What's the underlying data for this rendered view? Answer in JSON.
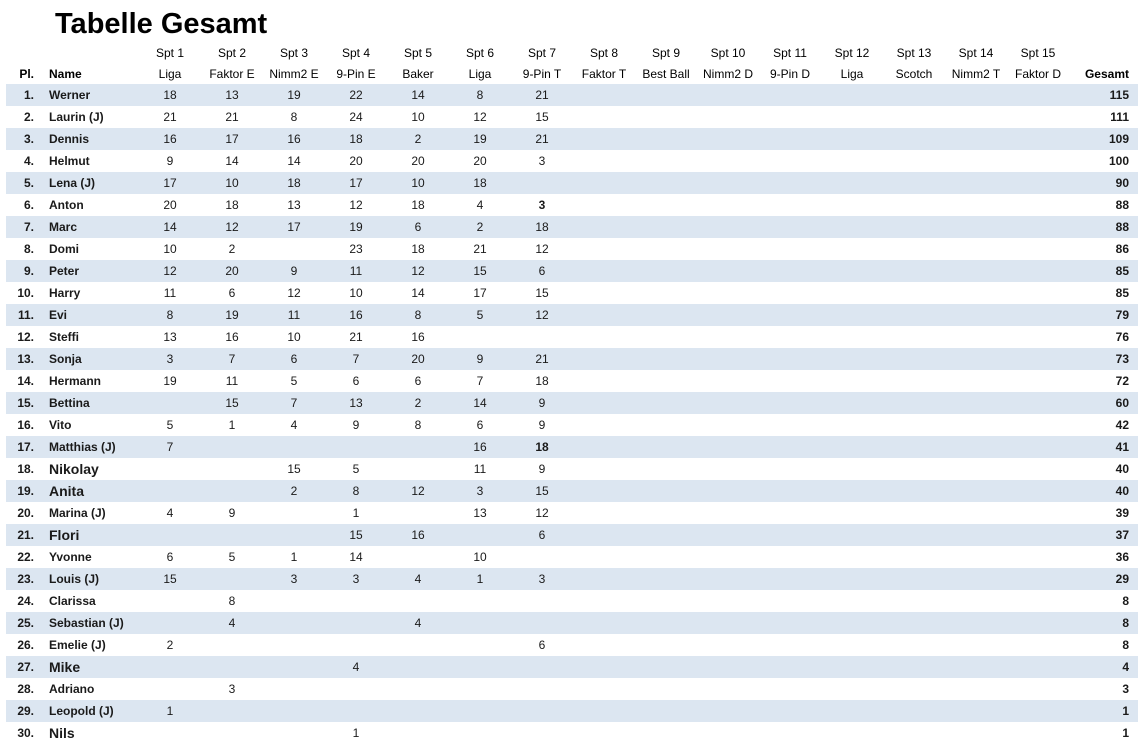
{
  "title": "Tabelle Gesamt",
  "colors": {
    "stripe": "#dce6f1",
    "text": "#1a1a1a"
  },
  "table": {
    "pl_header": "Pl.",
    "name_header": "Name",
    "gesamt_header": "Gesamt",
    "spt_columns": [
      {
        "label": "Spt 1",
        "mode": "Liga"
      },
      {
        "label": "Spt 2",
        "mode": "Faktor E"
      },
      {
        "label": "Spt 3",
        "mode": "Nimm2 E"
      },
      {
        "label": "Spt 4",
        "mode": "9-Pin E"
      },
      {
        "label": "Spt 5",
        "mode": "Baker"
      },
      {
        "label": "Spt 6",
        "mode": "Liga"
      },
      {
        "label": "Spt 7",
        "mode": "9-Pin T"
      },
      {
        "label": "Spt 8",
        "mode": "Faktor T"
      },
      {
        "label": "Spt 9",
        "mode": "Best Ball"
      },
      {
        "label": "Spt 10",
        "mode": "Nimm2 D"
      },
      {
        "label": "Spt 11",
        "mode": "9-Pin D"
      },
      {
        "label": "Spt 12",
        "mode": "Liga"
      },
      {
        "label": "Spt 13",
        "mode": "Scotch"
      },
      {
        "label": "Spt 14",
        "mode": "Nimm2 T"
      },
      {
        "label": "Spt 15",
        "mode": "Faktor D"
      }
    ],
    "rows": [
      {
        "pl": "1.",
        "name": "Werner",
        "large_name": false,
        "values": [
          "18",
          "13",
          "19",
          "22",
          "14",
          "8",
          "21",
          "",
          "",
          "",
          "",
          "",
          "",
          "",
          ""
        ],
        "bold_values": [],
        "gesamt": "115"
      },
      {
        "pl": "2.",
        "name": "Laurin (J)",
        "large_name": false,
        "values": [
          "21",
          "21",
          "8",
          "24",
          "10",
          "12",
          "15",
          "",
          "",
          "",
          "",
          "",
          "",
          "",
          ""
        ],
        "bold_values": [],
        "gesamt": "111"
      },
      {
        "pl": "3.",
        "name": "Dennis",
        "large_name": false,
        "values": [
          "16",
          "17",
          "16",
          "18",
          "2",
          "19",
          "21",
          "",
          "",
          "",
          "",
          "",
          "",
          "",
          ""
        ],
        "bold_values": [],
        "gesamt": "109"
      },
      {
        "pl": "4.",
        "name": "Helmut",
        "large_name": false,
        "values": [
          "9",
          "14",
          "14",
          "20",
          "20",
          "20",
          "3",
          "",
          "",
          "",
          "",
          "",
          "",
          "",
          ""
        ],
        "bold_values": [],
        "gesamt": "100"
      },
      {
        "pl": "5.",
        "name": "Lena (J)",
        "large_name": false,
        "values": [
          "17",
          "10",
          "18",
          "17",
          "10",
          "18",
          "",
          "",
          "",
          "",
          "",
          "",
          "",
          "",
          ""
        ],
        "bold_values": [],
        "gesamt": "90"
      },
      {
        "pl": "6.",
        "name": "Anton",
        "large_name": false,
        "values": [
          "20",
          "18",
          "13",
          "12",
          "18",
          "4",
          "3",
          "",
          "",
          "",
          "",
          "",
          "",
          "",
          ""
        ],
        "bold_values": [
          6
        ],
        "gesamt": "88"
      },
      {
        "pl": "7.",
        "name": "Marc",
        "large_name": false,
        "values": [
          "14",
          "12",
          "17",
          "19",
          "6",
          "2",
          "18",
          "",
          "",
          "",
          "",
          "",
          "",
          "",
          ""
        ],
        "bold_values": [],
        "gesamt": "88"
      },
      {
        "pl": "8.",
        "name": "Domi",
        "large_name": false,
        "values": [
          "10",
          "2",
          "",
          "23",
          "18",
          "21",
          "12",
          "",
          "",
          "",
          "",
          "",
          "",
          "",
          ""
        ],
        "bold_values": [],
        "gesamt": "86"
      },
      {
        "pl": "9.",
        "name": "Peter",
        "large_name": false,
        "values": [
          "12",
          "20",
          "9",
          "11",
          "12",
          "15",
          "6",
          "",
          "",
          "",
          "",
          "",
          "",
          "",
          ""
        ],
        "bold_values": [],
        "gesamt": "85"
      },
      {
        "pl": "10.",
        "name": "Harry",
        "large_name": false,
        "values": [
          "11",
          "6",
          "12",
          "10",
          "14",
          "17",
          "15",
          "",
          "",
          "",
          "",
          "",
          "",
          "",
          ""
        ],
        "bold_values": [],
        "gesamt": "85"
      },
      {
        "pl": "11.",
        "name": "Evi",
        "large_name": false,
        "values": [
          "8",
          "19",
          "11",
          "16",
          "8",
          "5",
          "12",
          "",
          "",
          "",
          "",
          "",
          "",
          "",
          ""
        ],
        "bold_values": [],
        "gesamt": "79"
      },
      {
        "pl": "12.",
        "name": "Steffi",
        "large_name": false,
        "values": [
          "13",
          "16",
          "10",
          "21",
          "16",
          "",
          "",
          "",
          "",
          "",
          "",
          "",
          "",
          "",
          ""
        ],
        "bold_values": [],
        "gesamt": "76"
      },
      {
        "pl": "13.",
        "name": "Sonja",
        "large_name": false,
        "values": [
          "3",
          "7",
          "6",
          "7",
          "20",
          "9",
          "21",
          "",
          "",
          "",
          "",
          "",
          "",
          "",
          ""
        ],
        "bold_values": [],
        "gesamt": "73"
      },
      {
        "pl": "14.",
        "name": "Hermann",
        "large_name": false,
        "values": [
          "19",
          "11",
          "5",
          "6",
          "6",
          "7",
          "18",
          "",
          "",
          "",
          "",
          "",
          "",
          "",
          ""
        ],
        "bold_values": [],
        "gesamt": "72"
      },
      {
        "pl": "15.",
        "name": "Bettina",
        "large_name": false,
        "values": [
          "",
          "15",
          "7",
          "13",
          "2",
          "14",
          "9",
          "",
          "",
          "",
          "",
          "",
          "",
          "",
          ""
        ],
        "bold_values": [],
        "gesamt": "60"
      },
      {
        "pl": "16.",
        "name": "Vito",
        "large_name": false,
        "values": [
          "5",
          "1",
          "4",
          "9",
          "8",
          "6",
          "9",
          "",
          "",
          "",
          "",
          "",
          "",
          "",
          ""
        ],
        "bold_values": [],
        "gesamt": "42"
      },
      {
        "pl": "17.",
        "name": "Matthias (J)",
        "large_name": false,
        "values": [
          "7",
          "",
          "",
          "",
          "",
          "16",
          "18",
          "",
          "",
          "",
          "",
          "",
          "",
          "",
          ""
        ],
        "bold_values": [
          6
        ],
        "gesamt": "41"
      },
      {
        "pl": "18.",
        "name": "Nikolay",
        "large_name": true,
        "values": [
          "",
          "",
          "15",
          "5",
          "",
          "11",
          "9",
          "",
          "",
          "",
          "",
          "",
          "",
          "",
          ""
        ],
        "bold_values": [],
        "gesamt": "40"
      },
      {
        "pl": "19.",
        "name": "Anita",
        "large_name": true,
        "values": [
          "",
          "",
          "2",
          "8",
          "12",
          "3",
          "15",
          "",
          "",
          "",
          "",
          "",
          "",
          "",
          ""
        ],
        "bold_values": [],
        "gesamt": "40"
      },
      {
        "pl": "20.",
        "name": "Marina (J)",
        "large_name": false,
        "values": [
          "4",
          "9",
          "",
          "1",
          "",
          "13",
          "12",
          "",
          "",
          "",
          "",
          "",
          "",
          "",
          ""
        ],
        "bold_values": [],
        "gesamt": "39"
      },
      {
        "pl": "21.",
        "name": "Flori",
        "large_name": true,
        "values": [
          "",
          "",
          "",
          "15",
          "16",
          "",
          "6",
          "",
          "",
          "",
          "",
          "",
          "",
          "",
          ""
        ],
        "bold_values": [],
        "gesamt": "37"
      },
      {
        "pl": "22.",
        "name": "Yvonne",
        "large_name": false,
        "values": [
          "6",
          "5",
          "1",
          "14",
          "",
          "10",
          "",
          "",
          "",
          "",
          "",
          "",
          "",
          "",
          ""
        ],
        "bold_values": [],
        "gesamt": "36"
      },
      {
        "pl": "23.",
        "name": "Louis (J)",
        "large_name": false,
        "values": [
          "15",
          "",
          "3",
          "3",
          "4",
          "1",
          "3",
          "",
          "",
          "",
          "",
          "",
          "",
          "",
          ""
        ],
        "bold_values": [],
        "gesamt": "29"
      },
      {
        "pl": "24.",
        "name": "Clarissa",
        "large_name": false,
        "values": [
          "",
          "8",
          "",
          "",
          "",
          "",
          "",
          "",
          "",
          "",
          "",
          "",
          "",
          "",
          ""
        ],
        "bold_values": [],
        "gesamt": "8"
      },
      {
        "pl": "25.",
        "name": "Sebastian (J)",
        "large_name": false,
        "values": [
          "",
          "4",
          "",
          "",
          "4",
          "",
          "",
          "",
          "",
          "",
          "",
          "",
          "",
          "",
          ""
        ],
        "bold_values": [],
        "gesamt": "8"
      },
      {
        "pl": "26.",
        "name": "Emelie (J)",
        "large_name": false,
        "values": [
          "2",
          "",
          "",
          "",
          "",
          "",
          "6",
          "",
          "",
          "",
          "",
          "",
          "",
          "",
          ""
        ],
        "bold_values": [],
        "gesamt": "8"
      },
      {
        "pl": "27.",
        "name": "Mike",
        "large_name": true,
        "values": [
          "",
          "",
          "",
          "4",
          "",
          "",
          "",
          "",
          "",
          "",
          "",
          "",
          "",
          "",
          ""
        ],
        "bold_values": [],
        "gesamt": "4"
      },
      {
        "pl": "28.",
        "name": "Adriano",
        "large_name": false,
        "values": [
          "",
          "3",
          "",
          "",
          "",
          "",
          "",
          "",
          "",
          "",
          "",
          "",
          "",
          "",
          ""
        ],
        "bold_values": [],
        "gesamt": "3"
      },
      {
        "pl": "29.",
        "name": "Leopold (J)",
        "large_name": false,
        "values": [
          "1",
          "",
          "",
          "",
          "",
          "",
          "",
          "",
          "",
          "",
          "",
          "",
          "",
          "",
          ""
        ],
        "bold_values": [],
        "gesamt": "1"
      },
      {
        "pl": "30.",
        "name": "Nils",
        "large_name": true,
        "values": [
          "",
          "",
          "",
          "1",
          "",
          "",
          "",
          "",
          "",
          "",
          "",
          "",
          "",
          "",
          ""
        ],
        "bold_values": [],
        "gesamt": "1"
      }
    ]
  }
}
